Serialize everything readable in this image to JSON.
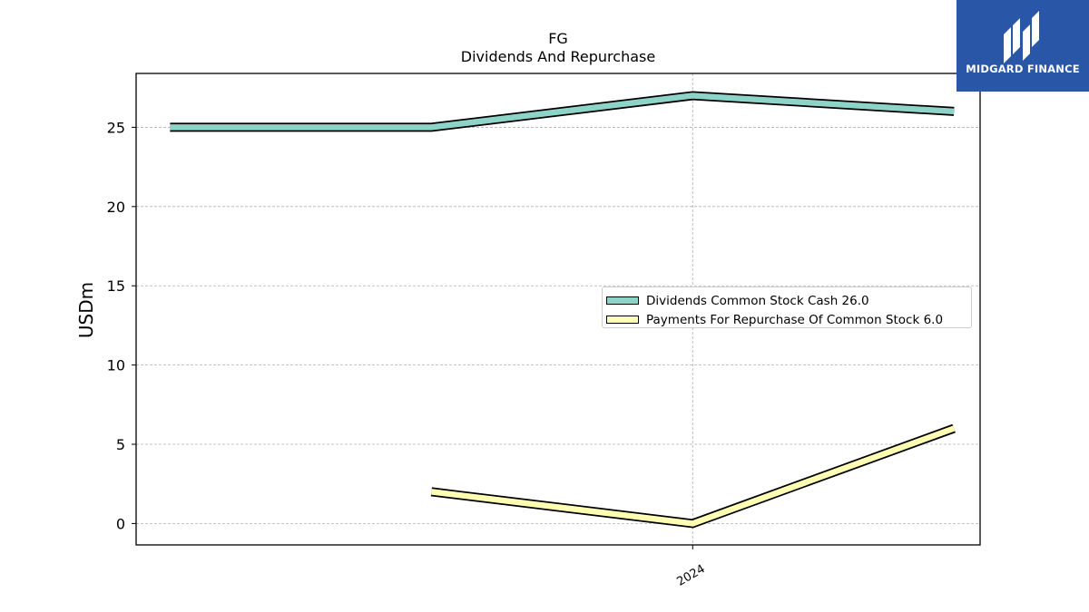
{
  "header": {
    "title": "FG",
    "subtitle": "Dividends And Repurchase"
  },
  "logo": {
    "text": "MIDGARD FINANCE",
    "background": "#2a56a8"
  },
  "chart_data": {
    "type": "line",
    "title": "FG",
    "subtitle": "Dividends And Repurchase",
    "xlabel": "",
    "ylabel": "USDm",
    "x": [
      0,
      1,
      2,
      3
    ],
    "xtick_labels": [
      {
        "pos": 2,
        "label": "2024"
      }
    ],
    "xlim": [
      -0.13,
      3.1
    ],
    "ylim": [
      -1.35,
      28.4
    ],
    "yticks": [
      0,
      5,
      10,
      15,
      20,
      25
    ],
    "grid": true,
    "legend_position": "center-right",
    "series": [
      {
        "name": "Dividends Common Stock Cash",
        "legend_label": "Dividends Common Stock Cash  26.0",
        "values": [
          25.0,
          25.0,
          27.0,
          26.0
        ],
        "color": "#8dd3c7"
      },
      {
        "name": "Payments For Repurchase Of Common Stock",
        "legend_label": "Payments For Repurchase Of Common Stock  6.0",
        "values": [
          null,
          2.0,
          0.0,
          6.0
        ],
        "color": "#ffffb3"
      }
    ]
  }
}
